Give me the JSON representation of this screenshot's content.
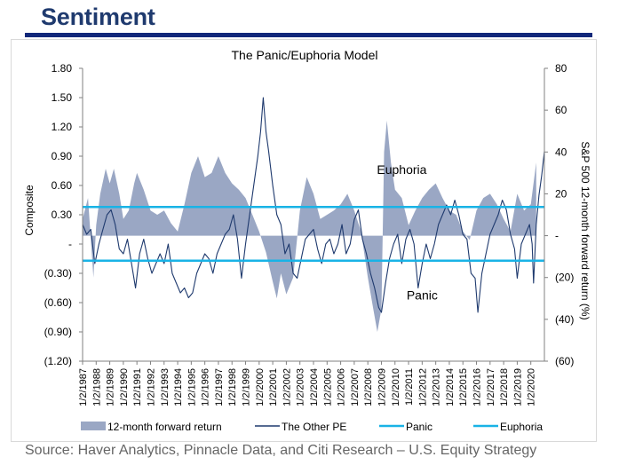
{
  "header": {
    "title": "Sentiment"
  },
  "source": "Source: Haver Analytics, Pinnacle Data, and Citi Research – U.S. Equity Strategy",
  "colors": {
    "header_rule": "#12287a",
    "forward_return": "#9aa7c4",
    "other_pe": "#1f3a6e",
    "threshold": "#19b3e6"
  },
  "chart_data": {
    "type": "line",
    "title": "The Panic/Euphoria Model",
    "ylabel": "Composite",
    "y2label": "S&P 500 12-month forward return (%)",
    "ylim": [
      -1.2,
      1.8
    ],
    "y2lim": [
      -60,
      80
    ],
    "y_ticks": [
      {
        "value": 1.8,
        "label": "1.80"
      },
      {
        "value": 1.5,
        "label": "1.50"
      },
      {
        "value": 1.2,
        "label": "1.20"
      },
      {
        "value": 0.9,
        "label": "0.90"
      },
      {
        "value": 0.6,
        "label": "0.60"
      },
      {
        "value": 0.3,
        "label": "0.30"
      },
      {
        "value": 0,
        "label": "-"
      },
      {
        "value": -0.3,
        "label": "(0.30)"
      },
      {
        "value": -0.6,
        "label": "(0.60)"
      },
      {
        "value": -0.9,
        "label": "(0.90)"
      },
      {
        "value": -1.2,
        "label": "(1.20)"
      }
    ],
    "y2_ticks": [
      {
        "value": 80,
        "label": "80"
      },
      {
        "value": 60,
        "label": "60"
      },
      {
        "value": 40,
        "label": "40"
      },
      {
        "value": 20,
        "label": "20"
      },
      {
        "value": 0,
        "label": "-"
      },
      {
        "value": -20,
        "label": "(20)"
      },
      {
        "value": -40,
        "label": "(40)"
      },
      {
        "value": -60,
        "label": "(60)"
      }
    ],
    "x_tick_labels": [
      "1/2/1987",
      "1/2/1988",
      "1/2/1989",
      "1/2/1990",
      "1/2/1991",
      "1/2/1992",
      "1/2/1993",
      "1/2/1994",
      "1/2/1995",
      "1/2/1996",
      "1/2/1997",
      "1/2/1998",
      "1/2/1999",
      "1/2/2000",
      "1/2/2001",
      "1/2/2002",
      "1/2/2003",
      "1/2/2004",
      "1/2/2005",
      "1/2/2006",
      "1/2/2007",
      "1/2/2008",
      "1/2/2009",
      "1/2/2010",
      "1/2/2011",
      "1/2/2012",
      "1/2/2013",
      "1/2/2014",
      "1/2/2015",
      "1/2/2016",
      "1/2/2017",
      "1/2/2018",
      "1/2/2019",
      "1/2/2020"
    ],
    "xlim": [
      1987.0,
      2021.0
    ],
    "panic_level": -0.17,
    "euphoria_level": 0.38,
    "annotations": [
      {
        "text": "Euphoria",
        "x": 2010.5,
        "y": 0.72
      },
      {
        "text": "Panic",
        "x": 2012.0,
        "y": -0.57
      }
    ],
    "legend_position": "bottom",
    "series": [
      {
        "name": "12-month forward return",
        "kind": "area",
        "axis": "right",
        "points": [
          [
            1987.0,
            8
          ],
          [
            1987.4,
            18
          ],
          [
            1987.8,
            -20
          ],
          [
            1988.0,
            5
          ],
          [
            1988.3,
            20
          ],
          [
            1988.7,
            32
          ],
          [
            1989.0,
            25
          ],
          [
            1989.3,
            32
          ],
          [
            1989.7,
            20
          ],
          [
            1990.0,
            8
          ],
          [
            1990.4,
            12
          ],
          [
            1990.8,
            25
          ],
          [
            1991.0,
            30
          ],
          [
            1991.5,
            22
          ],
          [
            1992.0,
            12
          ],
          [
            1992.5,
            10
          ],
          [
            1993.0,
            12
          ],
          [
            1993.5,
            6
          ],
          [
            1994.0,
            2
          ],
          [
            1994.5,
            15
          ],
          [
            1995.0,
            30
          ],
          [
            1995.5,
            38
          ],
          [
            1996.0,
            28
          ],
          [
            1996.5,
            30
          ],
          [
            1997.0,
            38
          ],
          [
            1997.5,
            30
          ],
          [
            1998.0,
            25
          ],
          [
            1998.5,
            22
          ],
          [
            1999.0,
            18
          ],
          [
            1999.5,
            10
          ],
          [
            2000.0,
            2
          ],
          [
            2000.5,
            -8
          ],
          [
            2001.0,
            -22
          ],
          [
            2001.3,
            -30
          ],
          [
            2001.6,
            -18
          ],
          [
            2002.0,
            -28
          ],
          [
            2002.5,
            -20
          ],
          [
            2003.0,
            12
          ],
          [
            2003.5,
            28
          ],
          [
            2004.0,
            20
          ],
          [
            2004.5,
            8
          ],
          [
            2005.0,
            10
          ],
          [
            2005.5,
            12
          ],
          [
            2006.0,
            15
          ],
          [
            2006.5,
            20
          ],
          [
            2007.0,
            12
          ],
          [
            2007.5,
            2
          ],
          [
            2008.0,
            -20
          ],
          [
            2008.4,
            -35
          ],
          [
            2008.7,
            -46
          ],
          [
            2009.0,
            -35
          ],
          [
            2009.2,
            40
          ],
          [
            2009.4,
            55
          ],
          [
            2009.7,
            35
          ],
          [
            2010.0,
            22
          ],
          [
            2010.5,
            18
          ],
          [
            2011.0,
            5
          ],
          [
            2011.5,
            12
          ],
          [
            2012.0,
            18
          ],
          [
            2012.5,
            22
          ],
          [
            2013.0,
            25
          ],
          [
            2013.5,
            18
          ],
          [
            2014.0,
            12
          ],
          [
            2014.5,
            10
          ],
          [
            2015.0,
            2
          ],
          [
            2015.5,
            -2
          ],
          [
            2016.0,
            12
          ],
          [
            2016.5,
            18
          ],
          [
            2017.0,
            20
          ],
          [
            2017.5,
            15
          ],
          [
            2018.0,
            8
          ],
          [
            2018.5,
            2
          ],
          [
            2019.0,
            20
          ],
          [
            2019.5,
            12
          ],
          [
            2020.0,
            15
          ],
          [
            2020.4,
            35
          ]
        ]
      },
      {
        "name": "The Other PE",
        "kind": "line",
        "axis": "left",
        "points": [
          [
            1987.0,
            0.2
          ],
          [
            1987.3,
            0.1
          ],
          [
            1987.6,
            0.15
          ],
          [
            1987.9,
            -0.2
          ],
          [
            1988.2,
            0.0
          ],
          [
            1988.5,
            0.15
          ],
          [
            1988.8,
            0.3
          ],
          [
            1989.1,
            0.35
          ],
          [
            1989.4,
            0.2
          ],
          [
            1989.7,
            -0.05
          ],
          [
            1990.0,
            -0.1
          ],
          [
            1990.3,
            0.05
          ],
          [
            1990.6,
            -0.2
          ],
          [
            1990.9,
            -0.45
          ],
          [
            1991.2,
            -0.1
          ],
          [
            1991.5,
            0.05
          ],
          [
            1991.8,
            -0.15
          ],
          [
            1992.1,
            -0.3
          ],
          [
            1992.4,
            -0.2
          ],
          [
            1992.7,
            -0.1
          ],
          [
            1993.0,
            -0.2
          ],
          [
            1993.3,
            0.0
          ],
          [
            1993.6,
            -0.3
          ],
          [
            1993.9,
            -0.4
          ],
          [
            1994.2,
            -0.5
          ],
          [
            1994.5,
            -0.45
          ],
          [
            1994.8,
            -0.55
          ],
          [
            1995.1,
            -0.5
          ],
          [
            1995.4,
            -0.3
          ],
          [
            1995.7,
            -0.2
          ],
          [
            1996.0,
            -0.1
          ],
          [
            1996.3,
            -0.15
          ],
          [
            1996.6,
            -0.3
          ],
          [
            1996.9,
            -0.1
          ],
          [
            1997.2,
            0.0
          ],
          [
            1997.5,
            0.1
          ],
          [
            1997.8,
            0.15
          ],
          [
            1998.1,
            0.3
          ],
          [
            1998.4,
            0.05
          ],
          [
            1998.7,
            -0.35
          ],
          [
            1999.0,
            0.0
          ],
          [
            1999.3,
            0.3
          ],
          [
            1999.6,
            0.6
          ],
          [
            1999.9,
            0.9
          ],
          [
            2000.1,
            1.15
          ],
          [
            2000.3,
            1.5
          ],
          [
            2000.5,
            1.15
          ],
          [
            2000.7,
            0.95
          ],
          [
            2001.0,
            0.6
          ],
          [
            2001.3,
            0.3
          ],
          [
            2001.6,
            0.2
          ],
          [
            2001.9,
            -0.1
          ],
          [
            2002.2,
            0.0
          ],
          [
            2002.5,
            -0.3
          ],
          [
            2002.8,
            -0.35
          ],
          [
            2003.1,
            -0.15
          ],
          [
            2003.4,
            0.05
          ],
          [
            2003.7,
            0.1
          ],
          [
            2004.0,
            0.15
          ],
          [
            2004.3,
            -0.05
          ],
          [
            2004.6,
            -0.2
          ],
          [
            2004.9,
            0.0
          ],
          [
            2005.2,
            0.05
          ],
          [
            2005.5,
            -0.1
          ],
          [
            2005.8,
            0.0
          ],
          [
            2006.1,
            0.2
          ],
          [
            2006.4,
            -0.1
          ],
          [
            2006.7,
            0.0
          ],
          [
            2007.0,
            0.25
          ],
          [
            2007.3,
            0.35
          ],
          [
            2007.6,
            0.05
          ],
          [
            2007.9,
            -0.1
          ],
          [
            2008.2,
            -0.3
          ],
          [
            2008.5,
            -0.45
          ],
          [
            2008.8,
            -0.65
          ],
          [
            2009.0,
            -0.7
          ],
          [
            2009.3,
            -0.4
          ],
          [
            2009.6,
            -0.15
          ],
          [
            2009.9,
            0.0
          ],
          [
            2010.2,
            0.1
          ],
          [
            2010.5,
            -0.2
          ],
          [
            2010.8,
            0.05
          ],
          [
            2011.1,
            0.15
          ],
          [
            2011.4,
            0.0
          ],
          [
            2011.7,
            -0.45
          ],
          [
            2012.0,
            -0.2
          ],
          [
            2012.3,
            0.0
          ],
          [
            2012.6,
            -0.15
          ],
          [
            2012.9,
            0.0
          ],
          [
            2013.2,
            0.2
          ],
          [
            2013.5,
            0.3
          ],
          [
            2013.8,
            0.4
          ],
          [
            2014.1,
            0.3
          ],
          [
            2014.4,
            0.45
          ],
          [
            2014.7,
            0.3
          ],
          [
            2015.0,
            0.1
          ],
          [
            2015.3,
            0.05
          ],
          [
            2015.6,
            -0.3
          ],
          [
            2015.9,
            -0.35
          ],
          [
            2016.1,
            -0.7
          ],
          [
            2016.4,
            -0.3
          ],
          [
            2016.7,
            -0.1
          ],
          [
            2017.0,
            0.1
          ],
          [
            2017.3,
            0.2
          ],
          [
            2017.6,
            0.3
          ],
          [
            2017.9,
            0.45
          ],
          [
            2018.2,
            0.35
          ],
          [
            2018.5,
            0.1
          ],
          [
            2018.8,
            -0.05
          ],
          [
            2019.0,
            -0.35
          ],
          [
            2019.3,
            0.0
          ],
          [
            2019.6,
            0.1
          ],
          [
            2019.9,
            0.2
          ],
          [
            2020.1,
            0.0
          ],
          [
            2020.2,
            -0.4
          ],
          [
            2020.4,
            0.2
          ],
          [
            2020.6,
            0.5
          ],
          [
            2020.8,
            0.7
          ],
          [
            2021.0,
            0.95
          ]
        ]
      },
      {
        "name": "Panic",
        "kind": "hline",
        "value": -0.17
      },
      {
        "name": "Euphoria",
        "kind": "hline",
        "value": 0.38
      }
    ]
  }
}
